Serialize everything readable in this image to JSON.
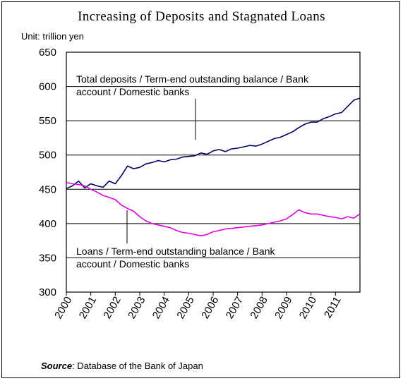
{
  "chart_data": {
    "type": "line",
    "title": "Increasing of Deposits and Stagnated Loans",
    "unit": "Unit: trillion yen",
    "source_label": "Source",
    "source_text": ": Database of the Bank of Japan",
    "ylim": [
      300,
      650
    ],
    "yticks": [
      "300",
      "350",
      "400",
      "450",
      "500",
      "550",
      "600",
      "650"
    ],
    "xlim": [
      2000.0,
      2012.0
    ],
    "xticks": [
      "2000",
      "2001",
      "2002",
      "2003",
      "2004",
      "2005",
      "2006",
      "2007",
      "2008",
      "2009",
      "2010",
      "2011"
    ],
    "grid": "horizontal",
    "annotations": [
      {
        "lines": [
          "Total deposits / Term-end outstanding balance / Bank",
          "account / Domestic banks"
        ],
        "target_series": 0
      },
      {
        "lines": [
          "Loans / Term-end outstanding balance / Bank",
          "account / Domestic banks"
        ],
        "target_series": 1
      }
    ],
    "series": [
      {
        "name": "Total deposits / Term-end outstanding balance / Bank account / Domestic banks",
        "color": "#000066",
        "x": [
          2000.0,
          2000.25,
          2000.5,
          2000.75,
          2001.0,
          2001.25,
          2001.5,
          2001.75,
          2002.0,
          2002.25,
          2002.5,
          2002.75,
          2003.0,
          2003.25,
          2003.5,
          2003.75,
          2004.0,
          2004.25,
          2004.5,
          2004.75,
          2005.0,
          2005.25,
          2005.5,
          2005.75,
          2006.0,
          2006.25,
          2006.5,
          2006.75,
          2007.0,
          2007.25,
          2007.5,
          2007.75,
          2008.0,
          2008.25,
          2008.5,
          2008.75,
          2009.0,
          2009.25,
          2009.5,
          2009.75,
          2010.0,
          2010.25,
          2010.5,
          2010.75,
          2011.0,
          2011.25,
          2011.5,
          2011.75,
          2012.0
        ],
        "values": [
          451,
          455,
          462,
          452,
          458,
          455,
          453,
          462,
          458,
          470,
          484,
          480,
          482,
          487,
          489,
          492,
          490,
          493,
          494,
          497,
          498,
          499,
          503,
          501,
          506,
          508,
          505,
          509,
          510,
          512,
          514,
          513,
          516,
          520,
          524,
          526,
          530,
          534,
          540,
          545,
          548,
          548,
          553,
          556,
          560,
          562,
          571,
          580,
          583
        ]
      },
      {
        "name": "Loans / Term-end outstanding balance / Bank account / Domestic banks",
        "color": "#dd00dd",
        "x": [
          2000.0,
          2000.25,
          2000.5,
          2000.75,
          2001.0,
          2001.25,
          2001.5,
          2001.75,
          2002.0,
          2002.25,
          2002.5,
          2002.75,
          2003.0,
          2003.25,
          2003.5,
          2003.75,
          2004.0,
          2004.25,
          2004.5,
          2004.75,
          2005.0,
          2005.25,
          2005.5,
          2005.75,
          2006.0,
          2006.25,
          2006.5,
          2006.75,
          2007.0,
          2007.25,
          2007.5,
          2007.75,
          2008.0,
          2008.25,
          2008.5,
          2008.75,
          2009.0,
          2009.25,
          2009.5,
          2009.75,
          2010.0,
          2010.25,
          2010.5,
          2010.75,
          2011.0,
          2011.25,
          2011.5,
          2011.75,
          2012.0
        ],
        "values": [
          460,
          458,
          457,
          455,
          450,
          446,
          441,
          438,
          435,
          427,
          422,
          418,
          410,
          404,
          400,
          398,
          396,
          394,
          390,
          387,
          386,
          384,
          382,
          384,
          388,
          390,
          392,
          393,
          394,
          395,
          396,
          397,
          398,
          400,
          402,
          404,
          407,
          413,
          420,
          416,
          414,
          414,
          412,
          410,
          409,
          407,
          410,
          408,
          414
        ]
      }
    ]
  }
}
